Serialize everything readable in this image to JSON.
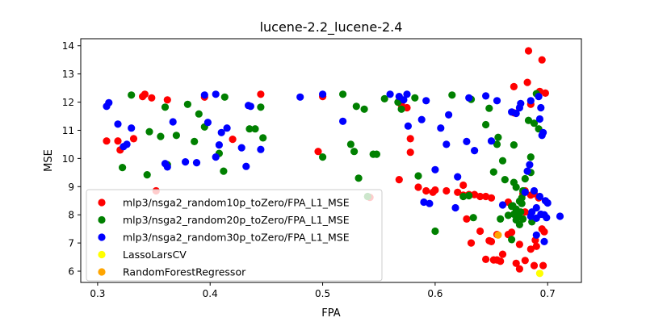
{
  "chart_data": {
    "type": "scatter",
    "title": "lucene-2.2_lucene-2.4",
    "xlabel": "FPA",
    "ylabel": "MSE",
    "xlim": [
      0.285,
      0.73
    ],
    "ylim": [
      5.6,
      14.25
    ],
    "xticks": [
      "0.3",
      "0.4",
      "0.5",
      "0.6",
      "0.7"
    ],
    "xtick_values": [
      0.3,
      0.4,
      0.5,
      0.6,
      0.7
    ],
    "yticks": [
      "6",
      "7",
      "8",
      "9",
      "10",
      "11",
      "12",
      "13",
      "14"
    ],
    "ytick_values": [
      6,
      7,
      8,
      9,
      10,
      11,
      12,
      13,
      14
    ],
    "grid": false,
    "legend_position": "lower-left",
    "series": [
      {
        "name": "mlp3/nsga2_random10p_toZero/FPA_L1_MSE",
        "color": "#ff0000",
        "points": [
          [
            0.308,
            10.62
          ],
          [
            0.318,
            10.62
          ],
          [
            0.32,
            10.3
          ],
          [
            0.332,
            10.7
          ],
          [
            0.34,
            12.2
          ],
          [
            0.342,
            12.28
          ],
          [
            0.348,
            12.15
          ],
          [
            0.352,
            8.85
          ],
          [
            0.362,
            12.08
          ],
          [
            0.395,
            12.18
          ],
          [
            0.445,
            12.28
          ],
          [
            0.42,
            10.68
          ],
          [
            0.496,
            10.25
          ],
          [
            0.5,
            12.2
          ],
          [
            0.542,
            8.62
          ],
          [
            0.568,
            9.25
          ],
          [
            0.57,
            11.9
          ],
          [
            0.575,
            11.8
          ],
          [
            0.578,
            10.7
          ],
          [
            0.578,
            10.22
          ],
          [
            0.585,
            8.98
          ],
          [
            0.592,
            8.85
          ],
          [
            0.598,
            8.8
          ],
          [
            0.6,
            8.88
          ],
          [
            0.61,
            8.85
          ],
          [
            0.62,
            8.8
          ],
          [
            0.625,
            9.05
          ],
          [
            0.625,
            8.7
          ],
          [
            0.63,
            8.72
          ],
          [
            0.628,
            7.85
          ],
          [
            0.632,
            7.0
          ],
          [
            0.635,
            8.72
          ],
          [
            0.64,
            8.65
          ],
          [
            0.64,
            7.42
          ],
          [
            0.645,
            6.42
          ],
          [
            0.645,
            8.65
          ],
          [
            0.648,
            7.08
          ],
          [
            0.65,
            8.6
          ],
          [
            0.65,
            7.05
          ],
          [
            0.652,
            6.4
          ],
          [
            0.655,
            6.4
          ],
          [
            0.655,
            7.3
          ],
          [
            0.658,
            6.35
          ],
          [
            0.66,
            6.6
          ],
          [
            0.665,
            8.45
          ],
          [
            0.665,
            7.3
          ],
          [
            0.668,
            7.38
          ],
          [
            0.67,
            11.62
          ],
          [
            0.67,
            12.55
          ],
          [
            0.672,
            6.28
          ],
          [
            0.675,
            6.08
          ],
          [
            0.675,
            6.95
          ],
          [
            0.678,
            8.75
          ],
          [
            0.68,
            8.85
          ],
          [
            0.68,
            6.38
          ],
          [
            0.682,
            12.7
          ],
          [
            0.683,
            13.82
          ],
          [
            0.685,
            8.7
          ],
          [
            0.685,
            6.78
          ],
          [
            0.688,
            8.75
          ],
          [
            0.688,
            6.2
          ],
          [
            0.69,
            6.88
          ],
          [
            0.692,
            8.6
          ],
          [
            0.693,
            12.38
          ],
          [
            0.695,
            13.5
          ],
          [
            0.695,
            7.5
          ],
          [
            0.696,
            6.2
          ],
          [
            0.697,
            7.4
          ],
          [
            0.698,
            12.32
          ],
          [
            0.685,
            11.92
          ],
          [
            0.68,
            8.1
          ],
          [
            0.689,
            7.1
          ]
        ]
      },
      {
        "name": "mlp3/nsga2_random20p_toZero/FPA_L1_MSE",
        "color": "#008000",
        "points": [
          [
            0.322,
            9.68
          ],
          [
            0.33,
            12.25
          ],
          [
            0.344,
            9.42
          ],
          [
            0.346,
            10.95
          ],
          [
            0.356,
            10.78
          ],
          [
            0.36,
            11.82
          ],
          [
            0.362,
            9.78
          ],
          [
            0.37,
            10.82
          ],
          [
            0.38,
            11.92
          ],
          [
            0.386,
            10.6
          ],
          [
            0.39,
            11.58
          ],
          [
            0.395,
            11.12
          ],
          [
            0.408,
            10.18
          ],
          [
            0.412,
            9.55
          ],
          [
            0.413,
            12.18
          ],
          [
            0.435,
            11.05
          ],
          [
            0.44,
            11.05
          ],
          [
            0.445,
            11.82
          ],
          [
            0.447,
            10.73
          ],
          [
            0.5,
            10.05
          ],
          [
            0.518,
            12.28
          ],
          [
            0.525,
            10.5
          ],
          [
            0.528,
            10.25
          ],
          [
            0.53,
            11.85
          ],
          [
            0.532,
            9.3
          ],
          [
            0.537,
            11.75
          ],
          [
            0.54,
            8.65
          ],
          [
            0.545,
            10.15
          ],
          [
            0.548,
            10.15
          ],
          [
            0.555,
            12.12
          ],
          [
            0.567,
            12.0
          ],
          [
            0.57,
            11.75
          ],
          [
            0.582,
            12.15
          ],
          [
            0.585,
            9.38
          ],
          [
            0.6,
            7.42
          ],
          [
            0.615,
            12.25
          ],
          [
            0.625,
            8.65
          ],
          [
            0.63,
            8.68
          ],
          [
            0.632,
            12.1
          ],
          [
            0.648,
            11.78
          ],
          [
            0.652,
            9.52
          ],
          [
            0.655,
            10.5
          ],
          [
            0.656,
            10.75
          ],
          [
            0.658,
            7.85
          ],
          [
            0.66,
            9.92
          ],
          [
            0.662,
            9.25
          ],
          [
            0.665,
            7.98
          ],
          [
            0.668,
            8.3
          ],
          [
            0.668,
            7.12
          ],
          [
            0.67,
            10.48
          ],
          [
            0.67,
            9.15
          ],
          [
            0.672,
            8.98
          ],
          [
            0.672,
            8.2
          ],
          [
            0.674,
            7.98
          ],
          [
            0.675,
            8.48
          ],
          [
            0.675,
            7.65
          ],
          [
            0.676,
            8.1
          ],
          [
            0.677,
            8.4
          ],
          [
            0.678,
            8.85
          ],
          [
            0.678,
            7.85
          ],
          [
            0.68,
            9.28
          ],
          [
            0.683,
            11.35
          ],
          [
            0.685,
            9.5
          ],
          [
            0.685,
            10.05
          ],
          [
            0.686,
            7.75
          ],
          [
            0.688,
            11.25
          ],
          [
            0.69,
            12.3
          ],
          [
            0.692,
            11.05
          ],
          [
            0.67,
            8.02
          ],
          [
            0.672,
            7.82
          ],
          [
            0.669,
            8.32
          ],
          [
            0.677,
            8.6
          ],
          [
            0.645,
            11.2
          ],
          [
            0.634,
            7.9
          ]
        ]
      },
      {
        "name": "mlp3/nsga2_random30p_toZero/FPA_L1_MSE",
        "color": "#0000ff",
        "points": [
          [
            0.308,
            11.85
          ],
          [
            0.31,
            11.98
          ],
          [
            0.318,
            11.22
          ],
          [
            0.323,
            10.42
          ],
          [
            0.326,
            10.5
          ],
          [
            0.33,
            11.08
          ],
          [
            0.36,
            9.82
          ],
          [
            0.362,
            9.7
          ],
          [
            0.367,
            11.3
          ],
          [
            0.378,
            9.88
          ],
          [
            0.388,
            9.85
          ],
          [
            0.395,
            12.25
          ],
          [
            0.398,
            11.28
          ],
          [
            0.405,
            12.28
          ],
          [
            0.405,
            10.05
          ],
          [
            0.408,
            10.48
          ],
          [
            0.41,
            10.92
          ],
          [
            0.415,
            11.08
          ],
          [
            0.428,
            10.38
          ],
          [
            0.432,
            9.72
          ],
          [
            0.434,
            11.88
          ],
          [
            0.436,
            11.85
          ],
          [
            0.445,
            10.32
          ],
          [
            0.48,
            12.18
          ],
          [
            0.5,
            12.28
          ],
          [
            0.518,
            11.32
          ],
          [
            0.56,
            12.28
          ],
          [
            0.568,
            12.2
          ],
          [
            0.572,
            12.08
          ],
          [
            0.575,
            12.28
          ],
          [
            0.576,
            11.15
          ],
          [
            0.588,
            11.38
          ],
          [
            0.59,
            8.45
          ],
          [
            0.592,
            12.05
          ],
          [
            0.595,
            8.4
          ],
          [
            0.6,
            9.6
          ],
          [
            0.605,
            11.08
          ],
          [
            0.61,
            10.5
          ],
          [
            0.612,
            11.55
          ],
          [
            0.618,
            8.25
          ],
          [
            0.62,
            9.35
          ],
          [
            0.628,
            10.6
          ],
          [
            0.63,
            12.15
          ],
          [
            0.635,
            10.28
          ],
          [
            0.645,
            12.22
          ],
          [
            0.65,
            10.62
          ],
          [
            0.655,
            12.05
          ],
          [
            0.66,
            8.35
          ],
          [
            0.668,
            11.65
          ],
          [
            0.672,
            11.6
          ],
          [
            0.675,
            11.8
          ],
          [
            0.676,
            11.95
          ],
          [
            0.68,
            8.8
          ],
          [
            0.682,
            9.55
          ],
          [
            0.684,
            9.78
          ],
          [
            0.685,
            12.05
          ],
          [
            0.686,
            8.1
          ],
          [
            0.688,
            8.85
          ],
          [
            0.69,
            7.28
          ],
          [
            0.692,
            12.2
          ],
          [
            0.693,
            11.4
          ],
          [
            0.694,
            11.8
          ],
          [
            0.695,
            10.82
          ],
          [
            0.696,
            10.92
          ],
          [
            0.697,
            8.0
          ],
          [
            0.698,
            8.5
          ],
          [
            0.699,
            7.9
          ],
          [
            0.7,
            8.42
          ],
          [
            0.711,
            7.95
          ],
          [
            0.69,
            7.88
          ],
          [
            0.693,
            8.65
          ],
          [
            0.69,
            8.25
          ],
          [
            0.685,
            7.95
          ],
          [
            0.694,
            8.02
          ],
          [
            0.697,
            7.05
          ]
        ]
      },
      {
        "name": "LassoLarsCV",
        "color": "#ffff00",
        "points": [
          [
            0.693,
            5.92
          ]
        ]
      },
      {
        "name": "RandomForestRegressor",
        "color": "#ffa500",
        "points": [
          [
            0.656,
            7.28
          ]
        ]
      }
    ]
  }
}
